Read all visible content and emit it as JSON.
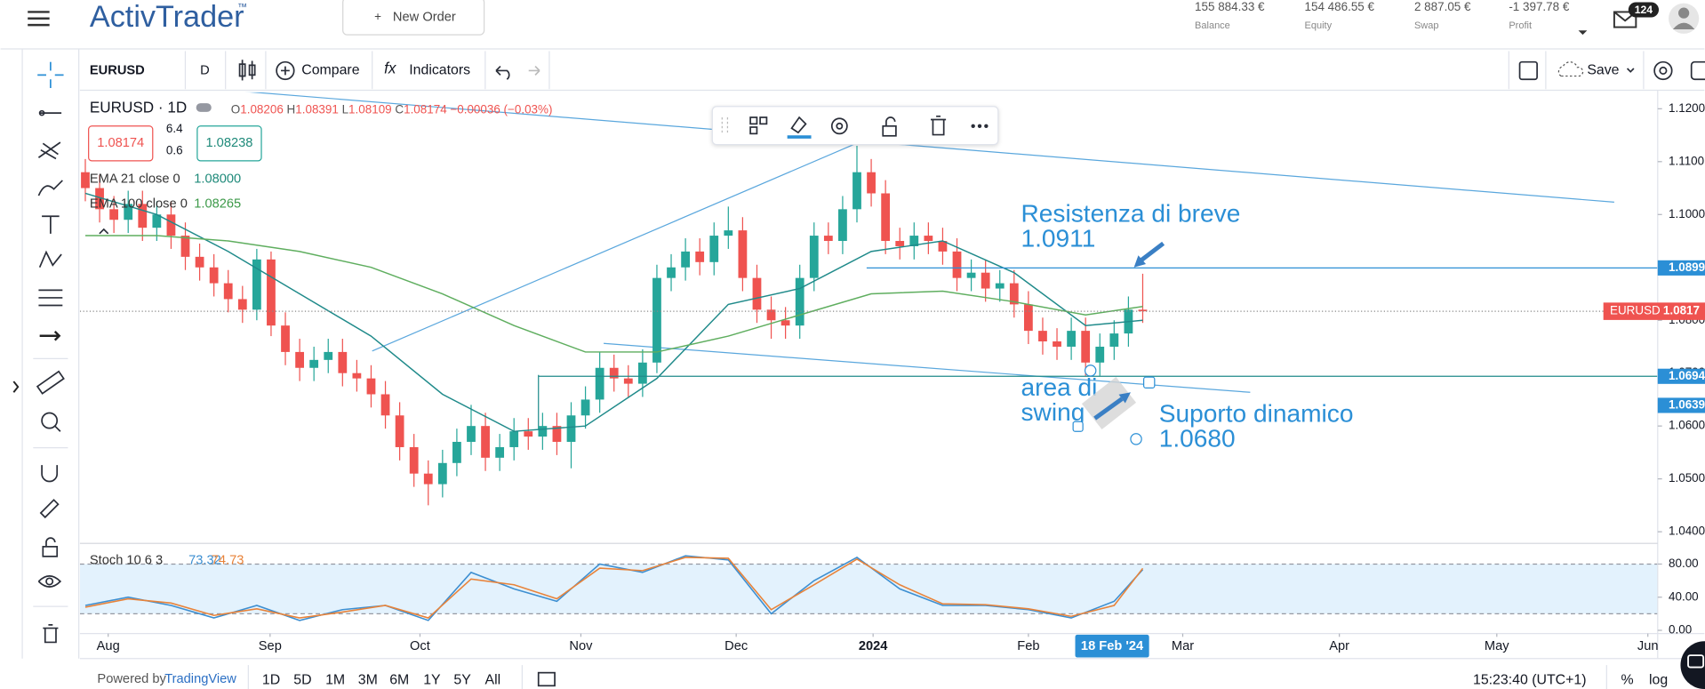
{
  "header": {
    "logo": "ActivTrader",
    "logo_mark": "™",
    "new_order": "New Order",
    "account": [
      {
        "amount": "155 884.33 €",
        "label": "Balance"
      },
      {
        "amount": "154 486.55 €",
        "label": "Equity"
      },
      {
        "amount": "2 887.05 €",
        "label": "Swap"
      },
      {
        "amount": "-1 397.78 €",
        "label": "Profit"
      }
    ],
    "notifications": "124"
  },
  "toolbar": {
    "symbol": "EURUSD",
    "interval": "D",
    "compare": "Compare",
    "indicators": "Indicators",
    "save": "Save"
  },
  "legend": {
    "title": "EURUSD · 1D",
    "ohlc": [
      [
        "O",
        "1.08206"
      ],
      [
        "H",
        "1.08391"
      ],
      [
        "L",
        "1.08109"
      ],
      [
        "C",
        "1.08174"
      ]
    ],
    "change": "−0.00036 (−0.03%)",
    "bid": "1.08174",
    "spread_top": "6.4",
    "spread_bottom": "0.6",
    "ask": "1.08238",
    "ema_values": [
      "1.08000",
      "1.08265"
    ]
  },
  "drawings": {
    "resistance": "Resistenza di breve",
    "resistance_value": "1.0911",
    "swing": [
      "area di",
      "swing"
    ],
    "support": "Suporto dinamico",
    "support_value": "1.0680"
  },
  "footer": {
    "powered": "Powered by",
    "brand": "TradingView",
    "ranges": [
      "1D",
      "5D",
      "1M",
      "3M",
      "6M",
      "1Y",
      "5Y",
      "All"
    ],
    "time": "15:23:40 (UTC+1)",
    "percent": "%",
    "log": "log"
  },
  "chart_data": [
    {
      "type": "candlestick",
      "symbol": "EURUSD",
      "up_color": "#26a69a",
      "down_color": "#ef5350",
      "grid": false,
      "xlim": [
        -0.38,
        110.04
      ],
      "xticks": [
        {
          "value": 1.6,
          "label": "Aug"
        },
        {
          "value": 12.93,
          "label": "Sep"
        },
        {
          "value": 23.42,
          "label": "Oct"
        },
        {
          "value": 34.68,
          "label": "Nov"
        },
        {
          "value": 45.55,
          "label": "Dec"
        },
        {
          "value": 55.13,
          "label": "2024"
        },
        {
          "value": 66.0,
          "label": "Feb"
        },
        {
          "value": 76.8,
          "label": "Mar"
        },
        {
          "value": 87.76,
          "label": "Apr"
        },
        {
          "value": 98.78,
          "label": "May"
        },
        {
          "value": 109.35,
          "label": "Jun"
        }
      ],
      "crosshair": {
        "value": 71.86,
        "label": "18 Feb '24"
      },
      "ylim": [
        1.0378,
        1.1231
      ],
      "yticks": [
        {
          "value": 1.12,
          "label": "1.1200"
        },
        {
          "value": 1.11,
          "label": "1.1100"
        },
        {
          "value": 1.1,
          "label": "1.1000"
        },
        {
          "value": 1.09,
          "label": "1.0900"
        },
        {
          "value": 1.08,
          "label": "1.0800"
        },
        {
          "value": 1.07,
          "label": "1.0700"
        },
        {
          "value": 1.06,
          "label": "1.0600"
        },
        {
          "value": 1.05,
          "label": "1.0500"
        },
        {
          "value": 1.04,
          "label": "1.0400"
        }
      ],
      "open": [
        1.108,
        1.105,
        1.101,
        1.099,
        1.102,
        1.0975,
        1.1,
        1.096,
        1.092,
        1.09,
        1.087,
        1.084,
        1.082,
        1.0915,
        1.079,
        1.074,
        1.071,
        1.0725,
        1.074,
        1.07,
        1.069,
        1.066,
        1.062,
        1.056,
        1.051,
        1.049,
        1.053,
        1.057,
        1.06,
        1.054,
        1.056,
        1.059,
        1.058,
        1.06,
        1.057,
        1.062,
        1.065,
        1.071,
        1.069,
        1.068,
        1.072,
        1.088,
        1.09,
        1.093,
        1.091,
        1.096,
        1.097,
        1.088,
        1.082,
        1.08,
        1.079,
        1.088,
        1.096,
        1.095,
        1.101,
        1.108,
        1.104,
        1.095,
        1.094,
        1.096,
        1.095,
        1.093,
        1.088,
        1.089,
        1.086,
        1.087,
        1.083,
        1.078,
        1.076,
        1.075,
        1.078,
        1.072,
        1.075,
        1.0775,
        1.082
      ],
      "high": [
        1.1105,
        1.1075,
        1.1035,
        1.1045,
        1.1045,
        1.1025,
        1.1025,
        1.0985,
        1.0945,
        1.0925,
        1.0895,
        1.0865,
        1.0935,
        1.093,
        1.0815,
        1.0765,
        1.075,
        1.0765,
        1.0765,
        1.0725,
        1.0715,
        1.0685,
        1.0645,
        1.0585,
        1.0535,
        1.0555,
        1.0595,
        1.064,
        1.0625,
        1.0585,
        1.0615,
        1.0615,
        1.0625,
        1.0625,
        1.0645,
        1.0675,
        1.074,
        1.0735,
        1.0715,
        1.0745,
        1.0905,
        1.0925,
        1.0955,
        1.0955,
        1.0985,
        1.1015,
        1.0995,
        1.0905,
        1.0845,
        1.0825,
        1.0905,
        1.0985,
        1.0985,
        1.1035,
        1.113,
        1.1105,
        1.1065,
        1.0975,
        1.0985,
        1.0985,
        1.0975,
        1.0955,
        1.0915,
        1.0915,
        1.0895,
        1.0895,
        1.0855,
        1.0805,
        1.0785,
        1.0805,
        1.0805,
        1.0775,
        1.08,
        1.0845,
        1.0888
      ],
      "low": [
        1.1025,
        1.0985,
        1.0965,
        1.0965,
        1.095,
        1.095,
        1.0935,
        1.0895,
        1.0875,
        1.0845,
        1.0815,
        1.0795,
        1.08,
        1.077,
        1.0715,
        1.0685,
        1.0685,
        1.07,
        1.0675,
        1.0665,
        1.0635,
        1.0595,
        1.0535,
        1.0485,
        1.045,
        1.0465,
        1.0505,
        1.0545,
        1.0515,
        1.0515,
        1.0535,
        1.0555,
        1.0555,
        1.0545,
        1.052,
        1.0595,
        1.0625,
        1.0665,
        1.0655,
        1.0655,
        1.07,
        1.0855,
        1.0875,
        1.0885,
        1.0885,
        1.0935,
        1.0855,
        1.0795,
        1.0765,
        1.0765,
        1.0765,
        1.0855,
        1.0925,
        1.0925,
        1.0985,
        1.1015,
        1.0925,
        1.0915,
        1.0915,
        1.0925,
        1.0905,
        1.0855,
        1.0855,
        1.0835,
        1.0835,
        1.0805,
        1.0755,
        1.0735,
        1.0725,
        1.0725,
        1.0695,
        1.0695,
        1.0725,
        1.075,
        1.0795
      ],
      "close": [
        1.105,
        1.101,
        1.099,
        1.102,
        1.0975,
        1.1,
        1.096,
        1.092,
        1.09,
        1.087,
        1.084,
        1.082,
        1.0915,
        1.079,
        1.074,
        1.071,
        1.0725,
        1.074,
        1.07,
        1.069,
        1.066,
        1.062,
        1.056,
        1.051,
        1.049,
        1.053,
        1.057,
        1.06,
        1.054,
        1.056,
        1.059,
        1.058,
        1.06,
        1.057,
        1.062,
        1.065,
        1.071,
        1.069,
        1.068,
        1.072,
        1.088,
        1.09,
        1.093,
        1.091,
        1.096,
        1.097,
        1.088,
        1.082,
        1.08,
        1.079,
        1.088,
        1.096,
        1.095,
        1.101,
        1.108,
        1.104,
        1.095,
        1.094,
        1.096,
        1.095,
        1.093,
        1.088,
        1.089,
        1.086,
        1.087,
        1.083,
        1.078,
        1.076,
        1.075,
        1.078,
        1.072,
        1.075,
        1.0775,
        1.082,
        1.0817
      ],
      "lines": [
        {
          "name": "EMA 21 close 0",
          "color": "#1f8a8a",
          "x": [
            0,
            5,
            10,
            15,
            20,
            25,
            30,
            35,
            40,
            45,
            50,
            55,
            60,
            65,
            70,
            74
          ],
          "values": [
            1.104,
            1.1,
            1.093,
            1.085,
            1.077,
            1.066,
            1.059,
            1.06,
            1.069,
            1.083,
            1.086,
            1.093,
            1.095,
            1.089,
            1.079,
            1.08
          ]
        },
        {
          "name": "EMA 100 close 0",
          "color": "#5fae5f",
          "x": [
            0,
            5,
            10,
            15,
            20,
            25,
            30,
            35,
            40,
            45,
            50,
            55,
            60,
            65,
            70,
            74
          ],
          "values": [
            1.096,
            1.096,
            1.095,
            1.093,
            1.09,
            1.085,
            1.079,
            1.074,
            1.074,
            1.077,
            1.081,
            1.085,
            1.0855,
            1.0835,
            1.081,
            1.0826
          ]
        }
      ],
      "levels": [
        1.0899,
        1.0694,
        1.0639
      ],
      "level_color": "#2b8fd6",
      "last_price": 1.0817,
      "last_price_color": "#ef5350"
    },
    {
      "type": "line",
      "title": "Stoch 10 6 3",
      "xlim": [
        -0.38,
        110.04
      ],
      "ylim": [
        -2.6,
        98.4
      ],
      "yticks": [
        {
          "value": 80,
          "label": "80.00"
        },
        {
          "value": 40,
          "label": "40.00"
        },
        {
          "value": 0,
          "label": "0.00"
        }
      ],
      "band": [
        20,
        80
      ],
      "band_color": "#e3f2fd",
      "x": [
        0,
        3,
        6,
        9,
        12,
        15,
        18,
        21,
        24,
        27,
        30,
        33,
        36,
        39,
        42,
        45,
        48,
        51,
        54,
        57,
        60,
        63,
        66,
        69,
        72,
        74
      ],
      "series": [
        {
          "color": "#3d8fd1",
          "values": [
            30,
            40,
            30,
            15,
            30,
            12,
            25,
            30,
            12,
            70,
            50,
            35,
            80,
            70,
            90,
            85,
            20,
            60,
            88,
            50,
            30,
            30,
            25,
            15,
            35,
            73.32
          ]
        },
        {
          "color": "#e8833a",
          "values": [
            28,
            38,
            33,
            18,
            26,
            15,
            22,
            30,
            15,
            62,
            55,
            38,
            75,
            72,
            88,
            87,
            25,
            55,
            86,
            55,
            32,
            31,
            26,
            17,
            30,
            74.73
          ]
        }
      ]
    }
  ]
}
